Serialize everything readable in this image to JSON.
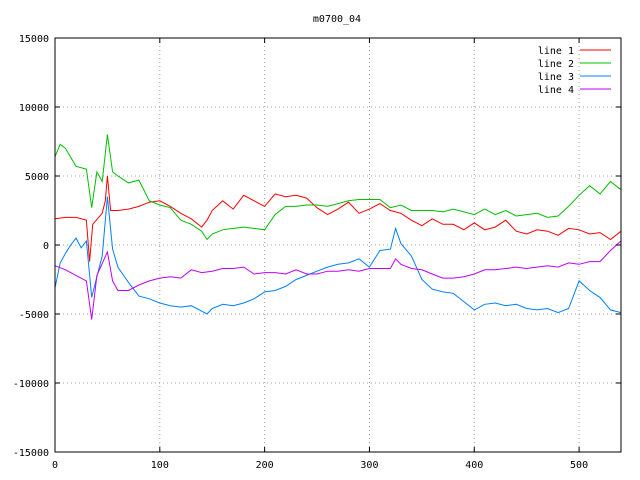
{
  "chart_data": {
    "type": "line",
    "title": "m0700_04",
    "xlabel": "",
    "ylabel": "",
    "xlim": [
      0,
      540
    ],
    "ylim": [
      -15000,
      15000
    ],
    "x_ticks": [
      0,
      100,
      200,
      300,
      400,
      500
    ],
    "y_ticks": [
      -15000,
      -10000,
      -5000,
      0,
      5000,
      10000,
      15000
    ],
    "grid": true,
    "legend_position": "top-right",
    "series": [
      {
        "name": "line 1",
        "color": "#ff0000",
        "points": [
          [
            0,
            1900
          ],
          [
            10,
            2000
          ],
          [
            20,
            2000
          ],
          [
            30,
            1800
          ],
          [
            33,
            -1200
          ],
          [
            36,
            1500
          ],
          [
            45,
            2300
          ],
          [
            48,
            3200
          ],
          [
            50,
            5000
          ],
          [
            53,
            2500
          ],
          [
            60,
            2500
          ],
          [
            70,
            2600
          ],
          [
            80,
            2800
          ],
          [
            90,
            3100
          ],
          [
            100,
            3200
          ],
          [
            110,
            2800
          ],
          [
            120,
            2300
          ],
          [
            130,
            1900
          ],
          [
            140,
            1300
          ],
          [
            145,
            1800
          ],
          [
            150,
            2500
          ],
          [
            160,
            3200
          ],
          [
            170,
            2600
          ],
          [
            180,
            3600
          ],
          [
            190,
            3200
          ],
          [
            200,
            2800
          ],
          [
            210,
            3700
          ],
          [
            220,
            3500
          ],
          [
            230,
            3600
          ],
          [
            240,
            3400
          ],
          [
            250,
            2700
          ],
          [
            260,
            2200
          ],
          [
            270,
            2600
          ],
          [
            280,
            3100
          ],
          [
            290,
            2300
          ],
          [
            300,
            2600
          ],
          [
            310,
            3000
          ],
          [
            320,
            2500
          ],
          [
            330,
            2300
          ],
          [
            340,
            1800
          ],
          [
            350,
            1400
          ],
          [
            360,
            1900
          ],
          [
            370,
            1500
          ],
          [
            380,
            1500
          ],
          [
            390,
            1100
          ],
          [
            400,
            1600
          ],
          [
            410,
            1100
          ],
          [
            420,
            1300
          ],
          [
            430,
            1800
          ],
          [
            440,
            1000
          ],
          [
            450,
            800
          ],
          [
            460,
            1100
          ],
          [
            470,
            1000
          ],
          [
            480,
            700
          ],
          [
            490,
            1200
          ],
          [
            500,
            1100
          ],
          [
            510,
            800
          ],
          [
            520,
            900
          ],
          [
            530,
            400
          ],
          [
            540,
            1000
          ]
        ]
      },
      {
        "name": "line 2",
        "color": "#00c000",
        "points": [
          [
            0,
            6400
          ],
          [
            5,
            7300
          ],
          [
            10,
            7000
          ],
          [
            20,
            5700
          ],
          [
            30,
            5500
          ],
          [
            35,
            2700
          ],
          [
            40,
            5300
          ],
          [
            45,
            4600
          ],
          [
            50,
            8000
          ],
          [
            55,
            5300
          ],
          [
            60,
            5000
          ],
          [
            70,
            4500
          ],
          [
            80,
            4700
          ],
          [
            90,
            3200
          ],
          [
            100,
            2900
          ],
          [
            110,
            2700
          ],
          [
            120,
            1800
          ],
          [
            130,
            1500
          ],
          [
            140,
            1000
          ],
          [
            145,
            400
          ],
          [
            150,
            800
          ],
          [
            160,
            1100
          ],
          [
            170,
            1200
          ],
          [
            180,
            1300
          ],
          [
            190,
            1200
          ],
          [
            200,
            1100
          ],
          [
            210,
            2200
          ],
          [
            220,
            2800
          ],
          [
            230,
            2800
          ],
          [
            240,
            2900
          ],
          [
            250,
            2900
          ],
          [
            260,
            2800
          ],
          [
            270,
            3000
          ],
          [
            280,
            3200
          ],
          [
            290,
            3300
          ],
          [
            300,
            3300
          ],
          [
            310,
            3300
          ],
          [
            320,
            2700
          ],
          [
            330,
            2900
          ],
          [
            340,
            2500
          ],
          [
            350,
            2500
          ],
          [
            360,
            2500
          ],
          [
            370,
            2400
          ],
          [
            380,
            2600
          ],
          [
            390,
            2400
          ],
          [
            400,
            2200
          ],
          [
            410,
            2600
          ],
          [
            420,
            2200
          ],
          [
            430,
            2500
          ],
          [
            440,
            2100
          ],
          [
            450,
            2200
          ],
          [
            460,
            2300
          ],
          [
            470,
            2000
          ],
          [
            480,
            2100
          ],
          [
            490,
            2800
          ],
          [
            500,
            3600
          ],
          [
            510,
            4300
          ],
          [
            520,
            3700
          ],
          [
            530,
            4600
          ],
          [
            540,
            4000
          ]
        ]
      },
      {
        "name": "line 3",
        "color": "#0080ff",
        "points": [
          [
            0,
            -3100
          ],
          [
            5,
            -1300
          ],
          [
            10,
            -600
          ],
          [
            15,
            0
          ],
          [
            20,
            500
          ],
          [
            25,
            -200
          ],
          [
            30,
            300
          ],
          [
            35,
            -3800
          ],
          [
            40,
            -2300
          ],
          [
            45,
            -800
          ],
          [
            50,
            3500
          ],
          [
            55,
            -300
          ],
          [
            60,
            -1600
          ],
          [
            70,
            -2700
          ],
          [
            80,
            -3700
          ],
          [
            90,
            -3900
          ],
          [
            100,
            -4200
          ],
          [
            110,
            -4400
          ],
          [
            120,
            -4500
          ],
          [
            130,
            -4400
          ],
          [
            140,
            -4800
          ],
          [
            145,
            -5000
          ],
          [
            150,
            -4600
          ],
          [
            160,
            -4300
          ],
          [
            170,
            -4400
          ],
          [
            180,
            -4200
          ],
          [
            190,
            -3900
          ],
          [
            200,
            -3400
          ],
          [
            210,
            -3300
          ],
          [
            220,
            -3000
          ],
          [
            230,
            -2500
          ],
          [
            240,
            -2200
          ],
          [
            250,
            -1900
          ],
          [
            260,
            -1600
          ],
          [
            270,
            -1400
          ],
          [
            280,
            -1300
          ],
          [
            290,
            -1000
          ],
          [
            300,
            -1600
          ],
          [
            310,
            -400
          ],
          [
            320,
            -300
          ],
          [
            325,
            1200
          ],
          [
            330,
            100
          ],
          [
            340,
            -800
          ],
          [
            350,
            -2500
          ],
          [
            360,
            -3200
          ],
          [
            370,
            -3400
          ],
          [
            380,
            -3500
          ],
          [
            390,
            -4100
          ],
          [
            400,
            -4700
          ],
          [
            410,
            -4300
          ],
          [
            420,
            -4200
          ],
          [
            430,
            -4400
          ],
          [
            440,
            -4300
          ],
          [
            450,
            -4600
          ],
          [
            460,
            -4700
          ],
          [
            470,
            -4600
          ],
          [
            480,
            -4900
          ],
          [
            490,
            -4600
          ],
          [
            500,
            -2600
          ],
          [
            510,
            -3300
          ],
          [
            520,
            -3800
          ],
          [
            530,
            -4700
          ],
          [
            540,
            -4900
          ]
        ]
      },
      {
        "name": "line 4",
        "color": "#c000ff",
        "points": [
          [
            0,
            -1500
          ],
          [
            10,
            -1800
          ],
          [
            20,
            -2200
          ],
          [
            30,
            -2600
          ],
          [
            35,
            -5400
          ],
          [
            40,
            -2200
          ],
          [
            50,
            -500
          ],
          [
            55,
            -2600
          ],
          [
            60,
            -3300
          ],
          [
            70,
            -3300
          ],
          [
            80,
            -2900
          ],
          [
            90,
            -2600
          ],
          [
            100,
            -2400
          ],
          [
            110,
            -2300
          ],
          [
            120,
            -2400
          ],
          [
            130,
            -1800
          ],
          [
            140,
            -2000
          ],
          [
            150,
            -1900
          ],
          [
            160,
            -1700
          ],
          [
            170,
            -1700
          ],
          [
            180,
            -1600
          ],
          [
            190,
            -2100
          ],
          [
            200,
            -2000
          ],
          [
            210,
            -2000
          ],
          [
            220,
            -2100
          ],
          [
            230,
            -1800
          ],
          [
            240,
            -2100
          ],
          [
            250,
            -2100
          ],
          [
            260,
            -1900
          ],
          [
            270,
            -1900
          ],
          [
            280,
            -1800
          ],
          [
            290,
            -1900
          ],
          [
            300,
            -1700
          ],
          [
            310,
            -1700
          ],
          [
            320,
            -1700
          ],
          [
            325,
            -1000
          ],
          [
            330,
            -1400
          ],
          [
            340,
            -1700
          ],
          [
            350,
            -1800
          ],
          [
            360,
            -2100
          ],
          [
            370,
            -2400
          ],
          [
            380,
            -2400
          ],
          [
            390,
            -2300
          ],
          [
            400,
            -2100
          ],
          [
            410,
            -1800
          ],
          [
            420,
            -1800
          ],
          [
            430,
            -1700
          ],
          [
            440,
            -1600
          ],
          [
            450,
            -1700
          ],
          [
            460,
            -1600
          ],
          [
            470,
            -1500
          ],
          [
            480,
            -1600
          ],
          [
            490,
            -1300
          ],
          [
            500,
            -1400
          ],
          [
            510,
            -1200
          ],
          [
            520,
            -1200
          ],
          [
            530,
            -400
          ],
          [
            540,
            300
          ]
        ]
      }
    ]
  }
}
